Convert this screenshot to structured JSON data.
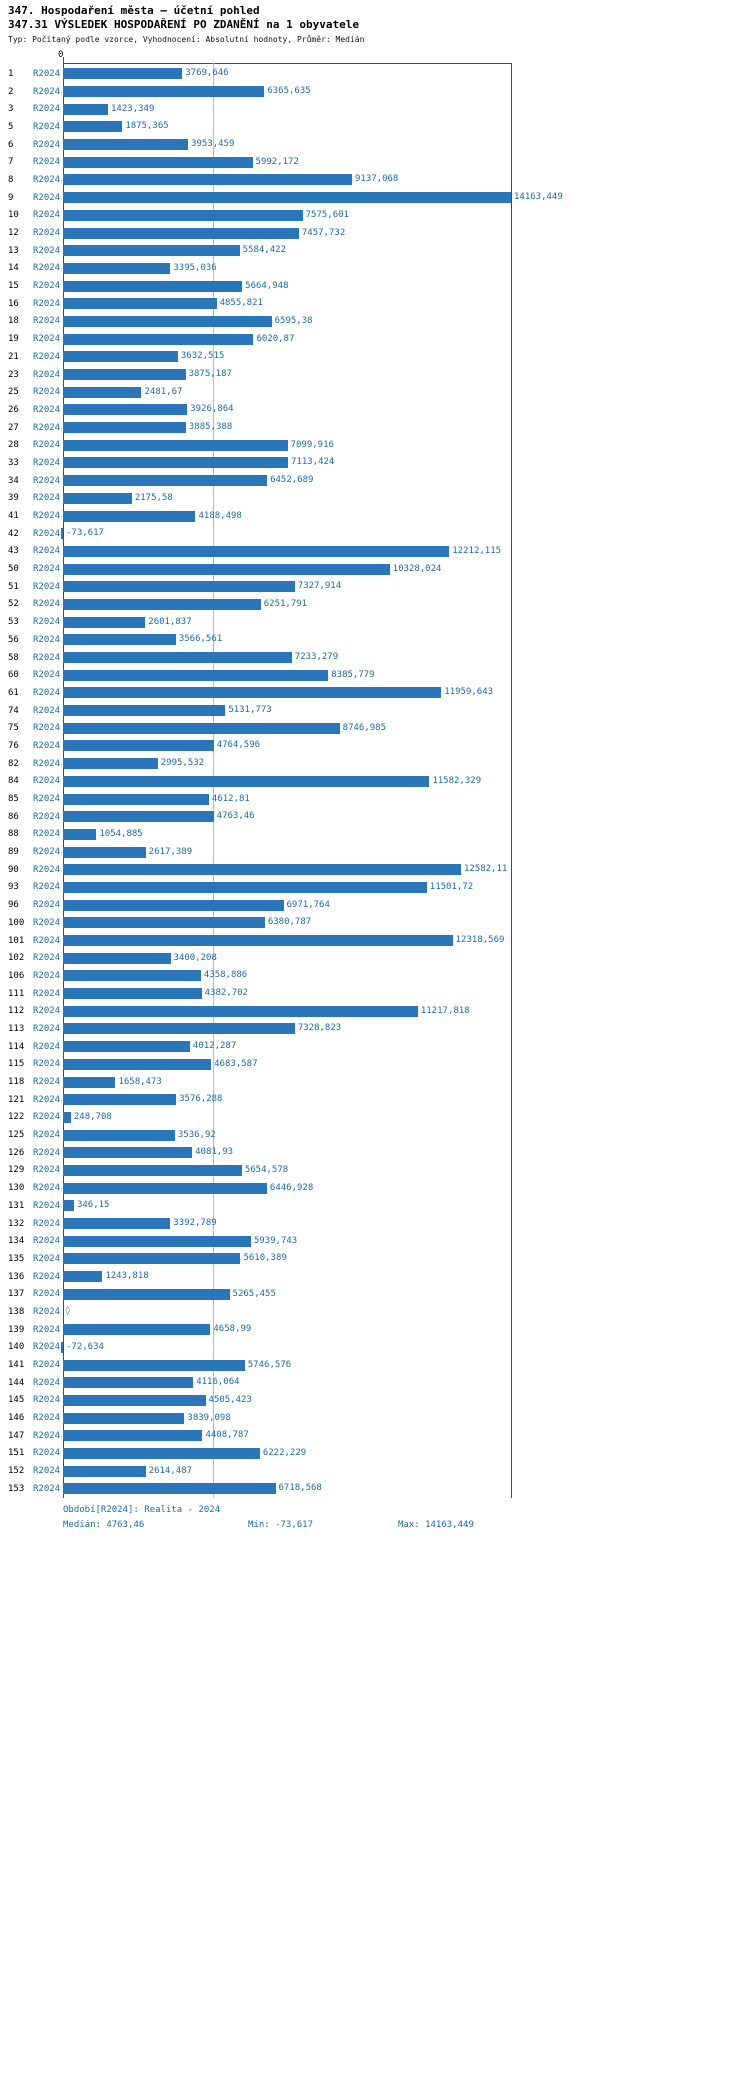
{
  "header": {
    "title1": "347. Hospodaření města – účetní pohled",
    "title2": "347.31 VÝSLEDEK HOSPODAŘENÍ PO ZDANĚNÍ na 1 obyvatele",
    "meta": "Typ: Počítaný podle vzorce, Vyhodnocení: Absolutní hodnoty, Průměr: Medián"
  },
  "axis": {
    "zero_label": "0"
  },
  "footer": {
    "period": "Období[R2024]: Realita - 2024",
    "median": "Medián: 4763,46",
    "min": "Min: -73,617",
    "max": "Max: 14163,449"
  },
  "colors": {
    "bar": "#2b76b9",
    "value_text": "#1c6bad",
    "median_gridline": "#b7bcc2",
    "axis": "#4a4a4a"
  },
  "chart_data": {
    "type": "bar",
    "orientation": "horizontal",
    "series_label": "R2024",
    "title": "347.31 VÝSLEDEK HOSPODAŘENÍ PO ZDANĚNÍ na 1 obyvatele",
    "xlim": [
      0,
      14163.449
    ],
    "median": 4763.46,
    "min": -73.617,
    "max": 14163.449,
    "gridline_at_median": true,
    "rows": [
      {
        "id": "1",
        "value": 3769.646,
        "display": "3769,646"
      },
      {
        "id": "2",
        "value": 6365.635,
        "display": "6365,635"
      },
      {
        "id": "3",
        "value": 1423.349,
        "display": "1423,349"
      },
      {
        "id": "5",
        "value": 1875.365,
        "display": "1875,365"
      },
      {
        "id": "6",
        "value": 3953.459,
        "display": "3953,459"
      },
      {
        "id": "7",
        "value": 5992.172,
        "display": "5992,172"
      },
      {
        "id": "8",
        "value": 9137.068,
        "display": "9137,068"
      },
      {
        "id": "9",
        "value": 14163.449,
        "display": "14163,449"
      },
      {
        "id": "10",
        "value": 7575.601,
        "display": "7575,601"
      },
      {
        "id": "12",
        "value": 7457.732,
        "display": "7457,732"
      },
      {
        "id": "13",
        "value": 5584.422,
        "display": "5584,422"
      },
      {
        "id": "14",
        "value": 3395.036,
        "display": "3395,036"
      },
      {
        "id": "15",
        "value": 5664.948,
        "display": "5664,948"
      },
      {
        "id": "16",
        "value": 4855.821,
        "display": "4855,821"
      },
      {
        "id": "18",
        "value": 6595.38,
        "display": "6595,38"
      },
      {
        "id": "19",
        "value": 6020.87,
        "display": "6020,87"
      },
      {
        "id": "21",
        "value": 3632.515,
        "display": "3632,515"
      },
      {
        "id": "23",
        "value": 3875.187,
        "display": "3875,187"
      },
      {
        "id": "25",
        "value": 2481.67,
        "display": "2481,67"
      },
      {
        "id": "26",
        "value": 3926.864,
        "display": "3926,864"
      },
      {
        "id": "27",
        "value": 3885.388,
        "display": "3885,388"
      },
      {
        "id": "28",
        "value": 7099.916,
        "display": "7099,916"
      },
      {
        "id": "33",
        "value": 7113.424,
        "display": "7113,424"
      },
      {
        "id": "34",
        "value": 6452.689,
        "display": "6452,689"
      },
      {
        "id": "39",
        "value": 2175.58,
        "display": "2175,58"
      },
      {
        "id": "41",
        "value": 4188.498,
        "display": "4188,498"
      },
      {
        "id": "42",
        "value": -73.617,
        "display": "-73,617"
      },
      {
        "id": "43",
        "value": 12212.115,
        "display": "12212,115"
      },
      {
        "id": "50",
        "value": 10328.024,
        "display": "10328,024"
      },
      {
        "id": "51",
        "value": 7327.914,
        "display": "7327,914"
      },
      {
        "id": "52",
        "value": 6251.791,
        "display": "6251,791"
      },
      {
        "id": "53",
        "value": 2601.837,
        "display": "2601,837"
      },
      {
        "id": "56",
        "value": 3566.561,
        "display": "3566,561"
      },
      {
        "id": "58",
        "value": 7233.279,
        "display": "7233,279"
      },
      {
        "id": "60",
        "value": 8385.779,
        "display": "8385,779"
      },
      {
        "id": "61",
        "value": 11959.643,
        "display": "11959,643"
      },
      {
        "id": "74",
        "value": 5131.773,
        "display": "5131,773"
      },
      {
        "id": "75",
        "value": 8746.985,
        "display": "8746,985"
      },
      {
        "id": "76",
        "value": 4764.596,
        "display": "4764,596"
      },
      {
        "id": "82",
        "value": 2995.532,
        "display": "2995,532"
      },
      {
        "id": "84",
        "value": 11582.329,
        "display": "11582,329"
      },
      {
        "id": "85",
        "value": 4612.81,
        "display": "4612,81"
      },
      {
        "id": "86",
        "value": 4763.46,
        "display": "4763,46"
      },
      {
        "id": "88",
        "value": 1054.885,
        "display": "1054,885"
      },
      {
        "id": "89",
        "value": 2617.389,
        "display": "2617,389"
      },
      {
        "id": "90",
        "value": 12582.11,
        "display": "12582,11"
      },
      {
        "id": "93",
        "value": 11501.72,
        "display": "11501,72"
      },
      {
        "id": "96",
        "value": 6971.764,
        "display": "6971,764"
      },
      {
        "id": "100",
        "value": 6380.787,
        "display": "6380,787"
      },
      {
        "id": "101",
        "value": 12318.569,
        "display": "12318,569"
      },
      {
        "id": "102",
        "value": 3400.208,
        "display": "3400,208"
      },
      {
        "id": "106",
        "value": 4358.886,
        "display": "4358,886"
      },
      {
        "id": "111",
        "value": 4382.702,
        "display": "4382,702"
      },
      {
        "id": "112",
        "value": 11217.818,
        "display": "11217,818"
      },
      {
        "id": "113",
        "value": 7328.823,
        "display": "7328,823"
      },
      {
        "id": "114",
        "value": 4012.287,
        "display": "4012,287"
      },
      {
        "id": "115",
        "value": 4683.587,
        "display": "4683,587"
      },
      {
        "id": "118",
        "value": 1658.473,
        "display": "1658,473"
      },
      {
        "id": "121",
        "value": 3576.288,
        "display": "3576,288"
      },
      {
        "id": "122",
        "value": 248.708,
        "display": "248,708"
      },
      {
        "id": "125",
        "value": 3536.92,
        "display": "3536,92"
      },
      {
        "id": "126",
        "value": 4081.93,
        "display": "4081,93"
      },
      {
        "id": "129",
        "value": 5654.578,
        "display": "5654,578"
      },
      {
        "id": "130",
        "value": 6446.928,
        "display": "6446,928"
      },
      {
        "id": "131",
        "value": 346.15,
        "display": "346,15"
      },
      {
        "id": "132",
        "value": 3392.789,
        "display": "3392,789"
      },
      {
        "id": "134",
        "value": 5939.743,
        "display": "5939,743"
      },
      {
        "id": "135",
        "value": 5610.389,
        "display": "5610,389"
      },
      {
        "id": "136",
        "value": 1243.818,
        "display": "1243,818"
      },
      {
        "id": "137",
        "value": 5265.455,
        "display": "5265,455"
      },
      {
        "id": "138",
        "value": null,
        "display": "◊"
      },
      {
        "id": "139",
        "value": 4658.99,
        "display": "4658,99"
      },
      {
        "id": "140",
        "value": -72.634,
        "display": "-72,634"
      },
      {
        "id": "141",
        "value": 5746.576,
        "display": "5746,576"
      },
      {
        "id": "144",
        "value": 4116.064,
        "display": "4116,064"
      },
      {
        "id": "145",
        "value": 4505.423,
        "display": "4505,423"
      },
      {
        "id": "146",
        "value": 3839.098,
        "display": "3839,098"
      },
      {
        "id": "147",
        "value": 4408.787,
        "display": "4408,787"
      },
      {
        "id": "151",
        "value": 6222.229,
        "display": "6222,229"
      },
      {
        "id": "152",
        "value": 2614.487,
        "display": "2614,487"
      },
      {
        "id": "153",
        "value": 6718.568,
        "display": "6718,568"
      }
    ]
  }
}
